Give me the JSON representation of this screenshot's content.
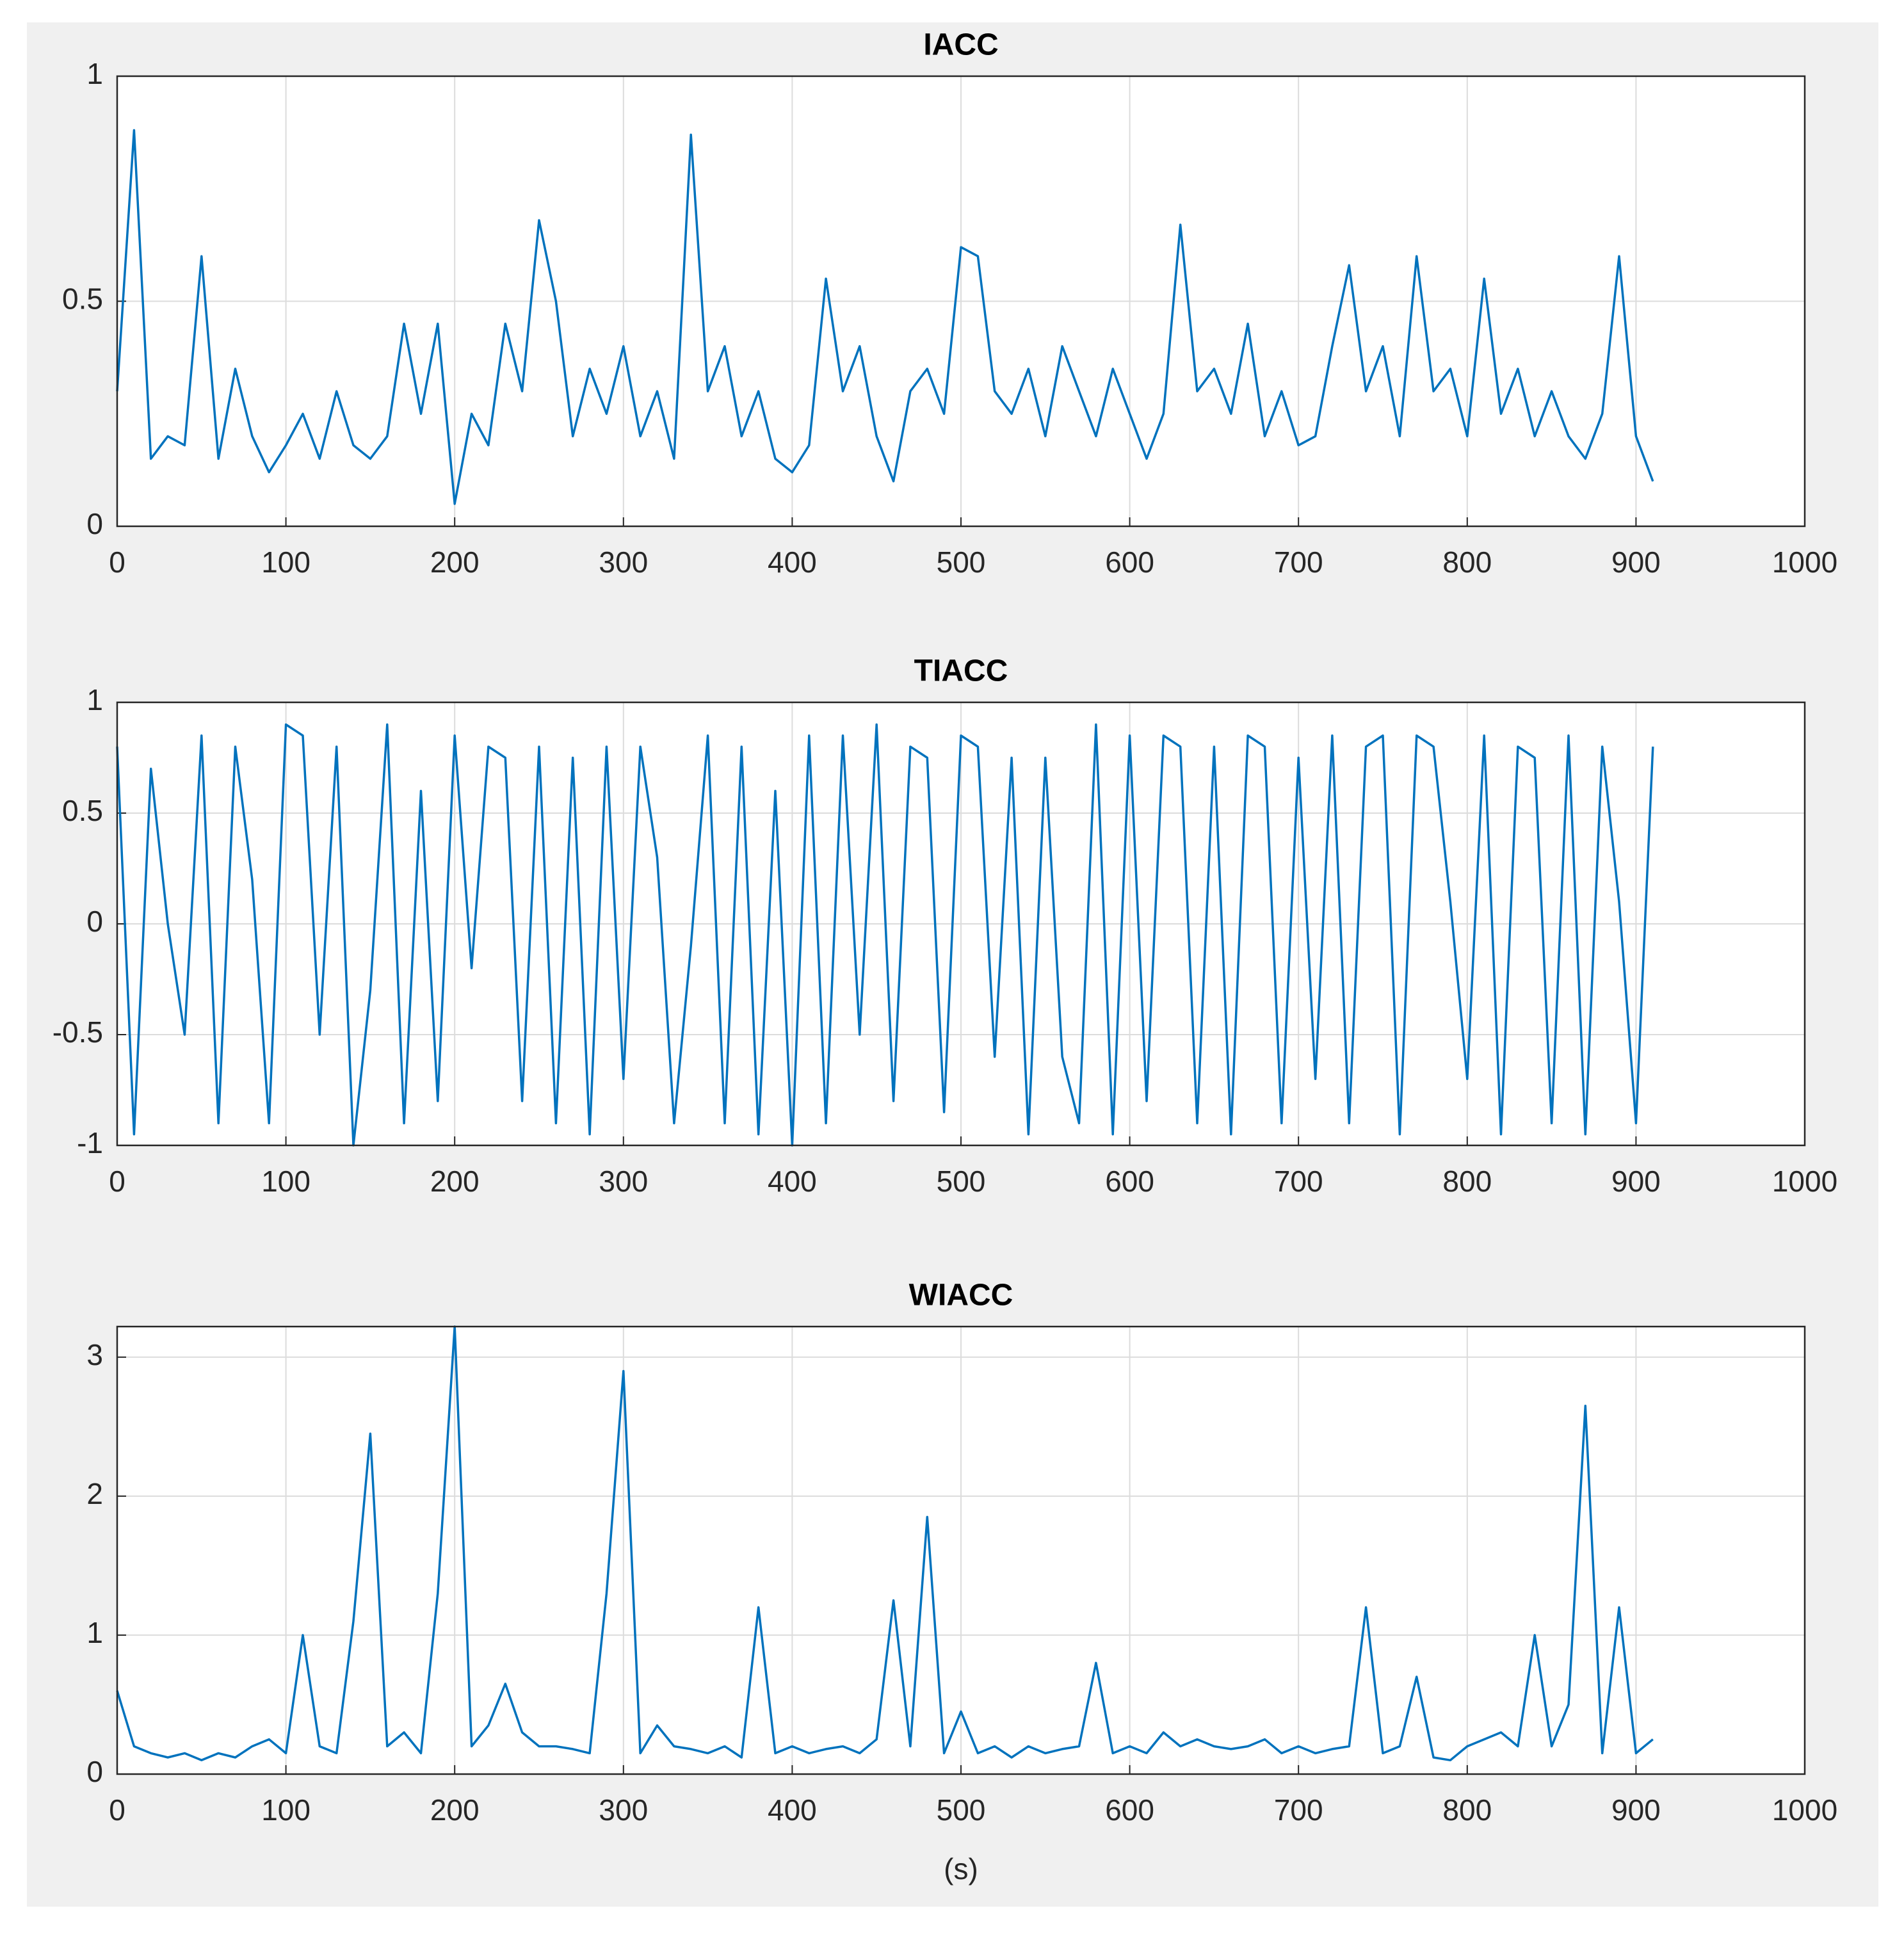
{
  "chart_data": [
    {
      "type": "line",
      "title": "IACC",
      "color": "#0072bd",
      "grid": true,
      "x": [
        0,
        10,
        20,
        30,
        40,
        50,
        60,
        70,
        80,
        90,
        100,
        110,
        120,
        130,
        140,
        150,
        160,
        170,
        180,
        190,
        200,
        210,
        220,
        230,
        240,
        250,
        260,
        270,
        280,
        290,
        300,
        310,
        320,
        330,
        340,
        350,
        360,
        370,
        380,
        390,
        400,
        410,
        420,
        430,
        440,
        450,
        460,
        470,
        480,
        490,
        500,
        510,
        520,
        530,
        540,
        550,
        560,
        570,
        580,
        590,
        600,
        610,
        620,
        630,
        640,
        650,
        660,
        670,
        680,
        690,
        700,
        710,
        720,
        730,
        740,
        750,
        760,
        770,
        780,
        790,
        800,
        810,
        820,
        830,
        840,
        850,
        860,
        870,
        880,
        890,
        900,
        910
      ],
      "values": [
        0.3,
        0.88,
        0.15,
        0.2,
        0.18,
        0.6,
        0.15,
        0.35,
        0.2,
        0.12,
        0.18,
        0.25,
        0.15,
        0.3,
        0.18,
        0.15,
        0.2,
        0.45,
        0.25,
        0.45,
        0.05,
        0.25,
        0.18,
        0.45,
        0.3,
        0.68,
        0.5,
        0.2,
        0.35,
        0.25,
        0.4,
        0.2,
        0.3,
        0.15,
        0.87,
        0.3,
        0.4,
        0.2,
        0.3,
        0.15,
        0.12,
        0.18,
        0.55,
        0.3,
        0.4,
        0.2,
        0.1,
        0.3,
        0.35,
        0.25,
        0.62,
        0.6,
        0.3,
        0.25,
        0.35,
        0.2,
        0.4,
        0.3,
        0.2,
        0.35,
        0.25,
        0.15,
        0.25,
        0.67,
        0.3,
        0.35,
        0.25,
        0.45,
        0.2,
        0.3,
        0.18,
        0.2,
        0.4,
        0.58,
        0.3,
        0.4,
        0.2,
        0.6,
        0.3,
        0.35,
        0.2,
        0.55,
        0.25,
        0.35,
        0.2,
        0.3,
        0.2,
        0.15,
        0.25,
        0.6,
        0.2,
        0.1
      ],
      "xlim": [
        0,
        1000
      ],
      "xticks": [
        0,
        100,
        200,
        300,
        400,
        500,
        600,
        700,
        800,
        900,
        1000
      ],
      "ylim": [
        0,
        1
      ],
      "yticks": [
        0,
        0.5,
        1
      ]
    },
    {
      "type": "line",
      "title": "TIACC",
      "color": "#0072bd",
      "grid": true,
      "x": [
        0,
        10,
        20,
        30,
        40,
        50,
        60,
        70,
        80,
        90,
        100,
        110,
        120,
        130,
        140,
        150,
        160,
        170,
        180,
        190,
        200,
        210,
        220,
        230,
        240,
        250,
        260,
        270,
        280,
        290,
        300,
        310,
        320,
        330,
        340,
        350,
        360,
        370,
        380,
        390,
        400,
        410,
        420,
        430,
        440,
        450,
        460,
        470,
        480,
        490,
        500,
        510,
        520,
        530,
        540,
        550,
        560,
        570,
        580,
        590,
        600,
        610,
        620,
        630,
        640,
        650,
        660,
        670,
        680,
        690,
        700,
        710,
        720,
        730,
        740,
        750,
        760,
        770,
        780,
        790,
        800,
        810,
        820,
        830,
        840,
        850,
        860,
        870,
        880,
        890,
        900,
        910
      ],
      "values": [
        0.8,
        -0.95,
        0.7,
        0,
        -0.5,
        0.85,
        -0.9,
        0.8,
        0.2,
        -0.9,
        0.9,
        0.85,
        -0.5,
        0.8,
        -1,
        -0.3,
        0.9,
        -0.9,
        0.6,
        -0.8,
        0.85,
        -0.2,
        0.8,
        0.75,
        -0.8,
        0.8,
        -0.9,
        0.75,
        -0.95,
        0.8,
        -0.7,
        0.8,
        0.3,
        -0.9,
        -0.1,
        0.85,
        -0.9,
        0.8,
        -0.95,
        0.6,
        -1,
        0.85,
        -0.9,
        0.85,
        -0.5,
        0.9,
        -0.8,
        0.8,
        0.75,
        -0.85,
        0.85,
        0.8,
        -0.6,
        0.75,
        -0.95,
        0.75,
        -0.6,
        -0.9,
        0.9,
        -0.95,
        0.85,
        -0.8,
        0.85,
        0.8,
        -0.9,
        0.8,
        -0.95,
        0.85,
        0.8,
        -0.9,
        0.75,
        -0.7,
        0.85,
        -0.9,
        0.8,
        0.85,
        -0.95,
        0.85,
        0.8,
        0.1,
        -0.7,
        0.85,
        -0.95,
        0.8,
        0.75,
        -0.9,
        0.85,
        -0.95,
        0.8,
        0.1,
        -0.9,
        0.8
      ],
      "xlim": [
        0,
        1000
      ],
      "xticks": [
        0,
        100,
        200,
        300,
        400,
        500,
        600,
        700,
        800,
        900,
        1000
      ],
      "ylim": [
        -1,
        1
      ],
      "yticks": [
        -1,
        -0.5,
        0,
        0.5,
        1
      ]
    },
    {
      "type": "line",
      "title": "WIACC",
      "color": "#0072bd",
      "grid": true,
      "xlabel": "(s)",
      "x": [
        0,
        10,
        20,
        30,
        40,
        50,
        60,
        70,
        80,
        90,
        100,
        110,
        120,
        130,
        140,
        150,
        160,
        170,
        180,
        190,
        200,
        210,
        220,
        230,
        240,
        250,
        260,
        270,
        280,
        290,
        300,
        310,
        320,
        330,
        340,
        350,
        360,
        370,
        380,
        390,
        400,
        410,
        420,
        430,
        440,
        450,
        460,
        470,
        480,
        490,
        500,
        510,
        520,
        530,
        540,
        550,
        560,
        570,
        580,
        590,
        600,
        610,
        620,
        630,
        640,
        650,
        660,
        670,
        680,
        690,
        700,
        710,
        720,
        730,
        740,
        750,
        760,
        770,
        780,
        790,
        800,
        810,
        820,
        830,
        840,
        850,
        860,
        870,
        880,
        890,
        900,
        910
      ],
      "values": [
        0.6,
        0.2,
        0.15,
        0.12,
        0.15,
        0.1,
        0.15,
        0.12,
        0.2,
        0.25,
        0.15,
        1.0,
        0.2,
        0.15,
        1.1,
        2.45,
        0.2,
        0.3,
        0.15,
        1.3,
        3.22,
        0.2,
        0.35,
        0.65,
        0.3,
        0.2,
        0.2,
        0.18,
        0.15,
        1.3,
        2.9,
        0.15,
        0.35,
        0.2,
        0.18,
        0.15,
        0.2,
        0.12,
        1.2,
        0.15,
        0.2,
        0.15,
        0.18,
        0.2,
        0.15,
        0.25,
        1.25,
        0.2,
        1.85,
        0.15,
        0.45,
        0.15,
        0.2,
        0.12,
        0.2,
        0.15,
        0.18,
        0.2,
        0.8,
        0.15,
        0.2,
        0.15,
        0.3,
        0.2,
        0.25,
        0.2,
        0.18,
        0.2,
        0.25,
        0.15,
        0.2,
        0.15,
        0.18,
        0.2,
        1.2,
        0.15,
        0.2,
        0.7,
        0.12,
        0.1,
        0.2,
        0.25,
        0.3,
        0.2,
        1.0,
        0.2,
        0.5,
        2.65,
        0.15,
        1.2,
        0.15,
        0.25
      ],
      "xlim": [
        0,
        1000
      ],
      "xticks": [
        0,
        100,
        200,
        300,
        400,
        500,
        600,
        700,
        800,
        900,
        1000
      ],
      "ylim": [
        0,
        3.22
      ],
      "yticks": [
        0,
        1,
        2,
        3
      ]
    }
  ]
}
